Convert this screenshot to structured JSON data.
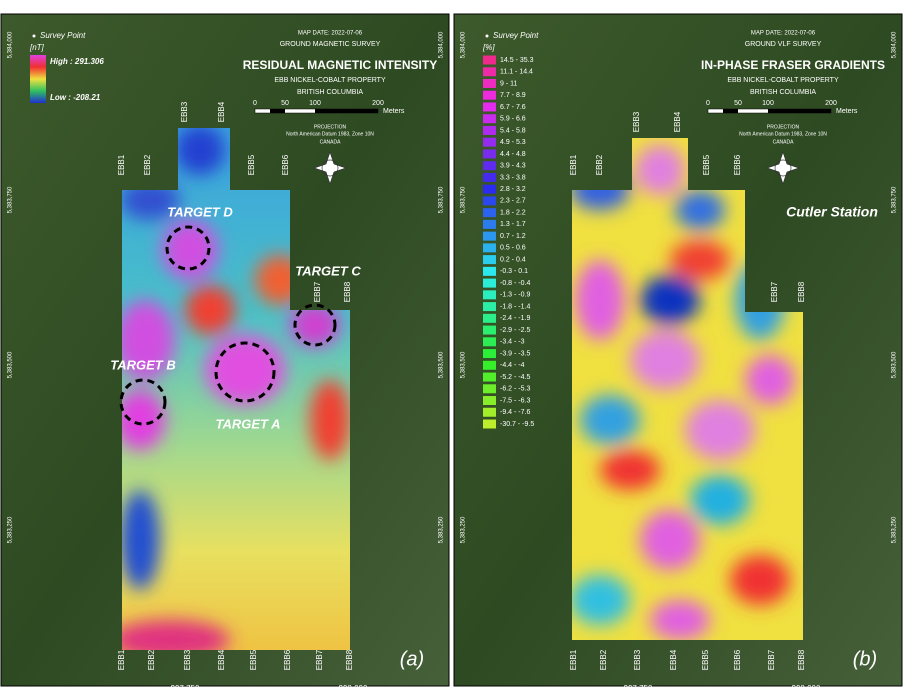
{
  "panels": [
    {
      "label": "(a)",
      "survey_point": "Survey Point",
      "unit": "[nT]",
      "high": "High : 291.306",
      "low": "Low : -208.21",
      "map_date": "MAP DATE: 2022-07-06",
      "survey": "GROUND MAGNETIC SURVEY",
      "title": "RESIDUAL MAGNETIC INTENSITY",
      "property": "EBB NICKEL-COBALT PROPERTY",
      "province": "BRITISH COLUMBIA",
      "scale_ticks": [
        "0",
        "50",
        "100",
        "200"
      ],
      "scale_unit": "Meters",
      "projection": "PROJECTION",
      "datum": "North American Datum 1983, Zone 10N",
      "country": "CANADA",
      "x_ticks": [
        "397,750",
        "398,000"
      ],
      "y_ticks": [
        "5,384,000",
        "5,383,750",
        "5,383,500",
        "5,383,250"
      ],
      "lines": [
        "EBB1",
        "EBB2",
        "EBB3",
        "EBB4",
        "EBB5",
        "EBB6",
        "EBB7",
        "EBB8"
      ],
      "targets": [
        "TARGET D",
        "TARGET C",
        "TARGET B",
        "TARGET A"
      ]
    },
    {
      "label": "(b)",
      "survey_point": "Survey Point",
      "unit": "[%]",
      "classes": [
        "14.5 - 35.3",
        "11.1 - 14.4",
        "9 - 11",
        "7.7 - 8.9",
        "6.7 - 7.6",
        "5.9 - 6.6",
        "5.4 - 5.8",
        "4.9 - 5.3",
        "4.4 - 4.8",
        "3.9 - 4.3",
        "3.3 - 3.8",
        "2.8 - 3.2",
        "2.3 - 2.7",
        "1.8 - 2.2",
        "1.3 - 1.7",
        "0.7 - 1.2",
        "0.5 - 0.6",
        "0.2 - 0.4",
        "-0.3 - 0.1",
        "-0.8 - -0.4",
        "-1.3 - -0.9",
        "-1.8 - -1.4",
        "-2.4 - -1.9",
        "-2.9 - -2.5",
        "-3.4 - -3",
        "-3.9 - -3.5",
        "-4.4 - -4",
        "-5.2 - -4.5",
        "-6.2 - -5.3",
        "-7.5 - -6.3",
        "-9.4 - -7.6",
        "-30.7 - -9.5"
      ],
      "map_date": "MAP DATE: 2022-07-06",
      "survey": "GROUND VLF SURVEY",
      "title": "IN-PHASE FRASER GRADIENTS",
      "property": "EBB NICKEL-COBALT PROPERTY",
      "province": "BRITISH COLUMBIA",
      "scale_ticks": [
        "0",
        "50",
        "100",
        "200"
      ],
      "scale_unit": "Meters",
      "projection": "PROJECTION",
      "datum": "North American Datum 1983, Zone 10N",
      "country": "CANADA",
      "station": "Cutler Station",
      "x_ticks": [
        "397,750",
        "398,000"
      ],
      "y_ticks": [
        "5,384,000",
        "5,383,750",
        "5,383,500",
        "5,383,250"
      ],
      "lines": [
        "EBB1",
        "EBB2",
        "EBB3",
        "EBB4",
        "EBB5",
        "EBB6",
        "EBB7",
        "EBB8"
      ]
    }
  ]
}
